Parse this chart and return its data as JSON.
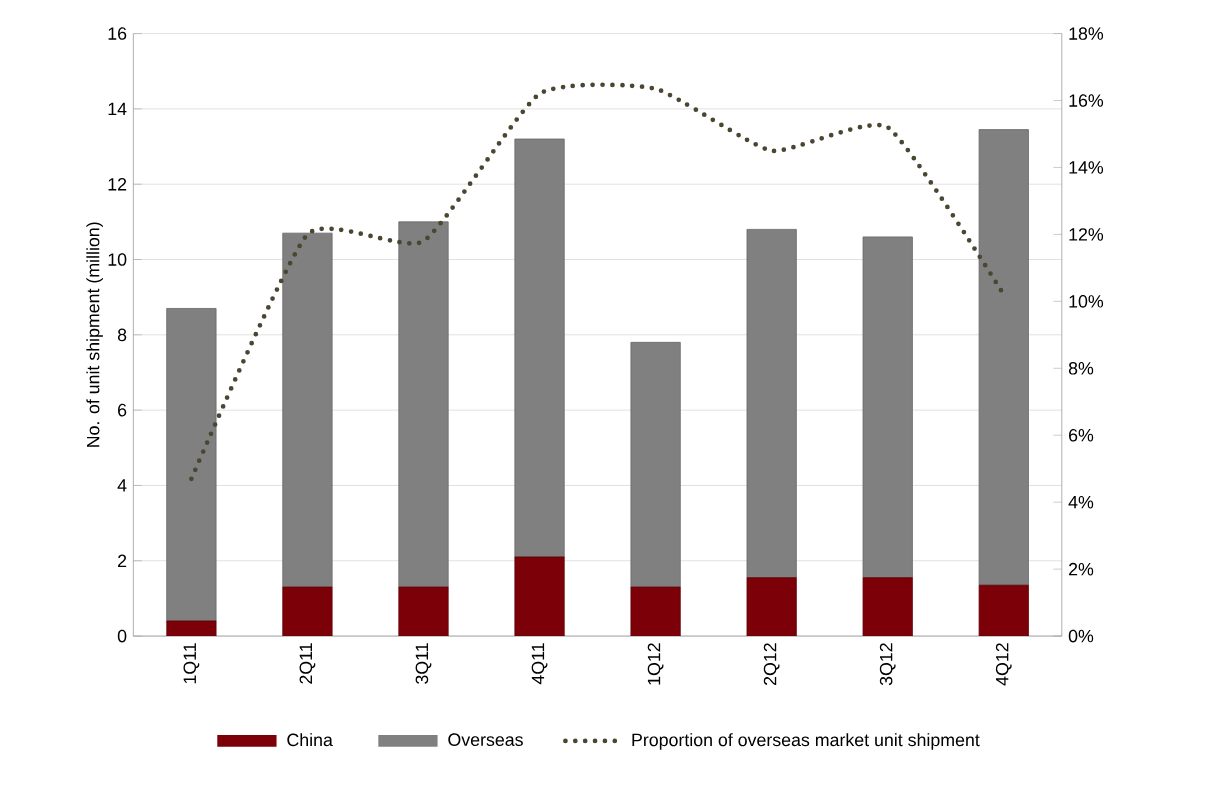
{
  "chart_data": {
    "type": "bar",
    "stacked": true,
    "ylabel": "No. of unit shipment (million)",
    "categories": [
      "1Q11",
      "2Q11",
      "3Q11",
      "4Q11",
      "1Q12",
      "2Q12",
      "3Q12",
      "4Q12"
    ],
    "series": [
      {
        "name": "China",
        "color": "#7b0008",
        "values": [
          0.4,
          1.3,
          1.3,
          2.1,
          1.3,
          1.55,
          1.55,
          1.35
        ]
      },
      {
        "name": "Overseas",
        "color": "#808080",
        "values": [
          8.3,
          9.4,
          9.7,
          11.1,
          6.5,
          9.25,
          9.05,
          12.1
        ]
      },
      {
        "name": "Proportion of overseas market unit shipment",
        "type": "line",
        "axis": "y2",
        "line_style": "dotted",
        "color": "#4a4632",
        "values": [
          4.7,
          12.0,
          11.8,
          16.2,
          16.35,
          14.5,
          15.2,
          10.2
        ]
      }
    ],
    "ylim": [
      0,
      16
    ],
    "yticks": [
      0,
      2,
      4,
      6,
      8,
      10,
      12,
      14,
      16
    ],
    "y2lim": [
      0,
      18
    ],
    "y2ticks": [
      {
        "value": 0,
        "label": "0%"
      },
      {
        "value": 2,
        "label": "2%"
      },
      {
        "value": 4,
        "label": "4%"
      },
      {
        "value": 6,
        "label": "6%"
      },
      {
        "value": 8,
        "label": "8%"
      },
      {
        "value": 10,
        "label": "10%"
      },
      {
        "value": 12,
        "label": "12%"
      },
      {
        "value": 14,
        "label": "14%"
      },
      {
        "value": 16,
        "label": "16%"
      },
      {
        "value": 18,
        "label": "18%"
      }
    ],
    "grid": "y",
    "legend": "bottom"
  }
}
